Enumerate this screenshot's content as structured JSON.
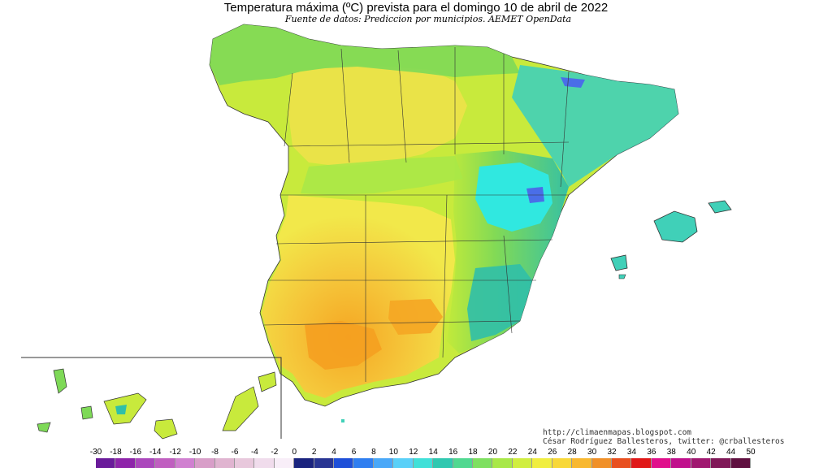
{
  "title": "Temperatura máxima (ºC) prevista para el domingo 10 de abril de 2022",
  "subtitle": "Fuente de datos: Prediccion por municipios. AEMET OpenData",
  "credits": {
    "url": "http://climaenmapas.blogspot.com",
    "author": "César Rodríguez Ballesteros, twitter: @crballesteros"
  },
  "colors": {
    "background": "#ffffff",
    "hot_orange": "#f5a623",
    "warm_yellow": "#f2e84a",
    "green_yellow": "#c2ea3a",
    "green": "#7ed957",
    "cyan": "#3ee0d0",
    "teal": "#2fbfa8",
    "blue": "#4a6ee8"
  },
  "legend": {
    "ticks": [
      "-30",
      "-18",
      "-16",
      "-14",
      "-12",
      "-10",
      "-8",
      "-6",
      "-4",
      "-2",
      "0",
      "2",
      "4",
      "6",
      "8",
      "10",
      "12",
      "14",
      "16",
      "18",
      "20",
      "22",
      "24",
      "26",
      "28",
      "30",
      "32",
      "34",
      "36",
      "38",
      "40",
      "42",
      "44",
      "50"
    ],
    "swatches": [
      "#6a1b9a",
      "#8e24aa",
      "#ab47bc",
      "#c05fc0",
      "#d080d0",
      "#d89ec8",
      "#e0b4d0",
      "#e8c8dc",
      "#f0dcec",
      "#f8eef8",
      "#1a237e",
      "#283593",
      "#1e4fd8",
      "#2f7ef0",
      "#4aa8f8",
      "#5ad0f8",
      "#40e0d8",
      "#30c8b0",
      "#50d890",
      "#7ee060",
      "#a8e848",
      "#d0ee40",
      "#f0ee40",
      "#f8d838",
      "#f8b830",
      "#f09028",
      "#e85020",
      "#e01818",
      "#e0108c",
      "#c0108c",
      "#a01870",
      "#801858",
      "#601040"
    ]
  }
}
